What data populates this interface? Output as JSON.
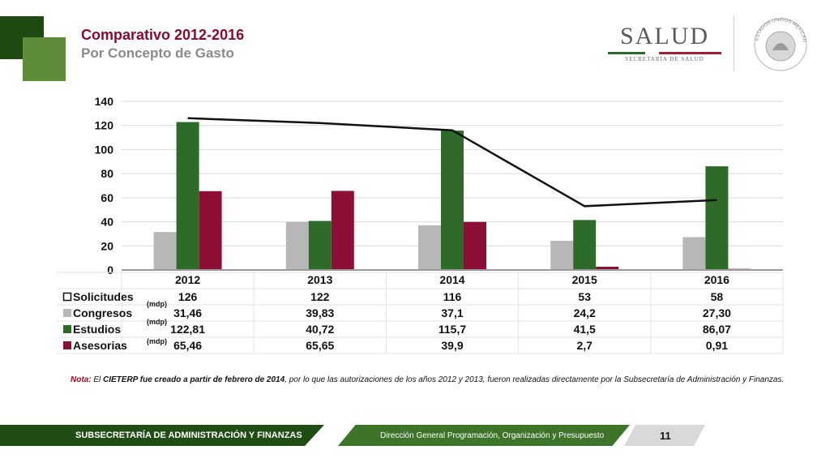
{
  "header": {
    "title": "Comparativo 2012-2016",
    "subtitle": "Por Concepto de Gasto",
    "logo_word": "SALUD",
    "logo_sub": "SECRETARÍA DE SALUD",
    "seal_text": "ESTADOS UNIDOS MEXICANOS"
  },
  "colors": {
    "solicitudes": "#111111",
    "congresos": "#b7b7b7",
    "estudios": "#2f6b28",
    "asesorias": "#8e0f35",
    "title": "#8b0a2e",
    "brand_dark_green": "#1f4d13"
  },
  "chart_data": {
    "type": "bar",
    "categories": [
      "2012",
      "2013",
      "2014",
      "2015",
      "2016"
    ],
    "ylim": [
      0,
      140
    ],
    "yticks": [
      "0",
      "20",
      "40",
      "60",
      "80",
      "100",
      "120",
      "140"
    ],
    "series": [
      {
        "name": "Solicitudes",
        "type": "line",
        "values": [
          126,
          122,
          116,
          53,
          58
        ],
        "labels": [
          "126",
          "122",
          "116",
          "53",
          "58"
        ]
      },
      {
        "name": "Congresos",
        "type": "bar",
        "values": [
          31.46,
          39.83,
          37.1,
          24.2,
          27.3
        ],
        "labels": [
          "31,46",
          "39,83",
          "37,1",
          "24,2",
          "27,30"
        ]
      },
      {
        "name": "Estudios",
        "type": "bar",
        "values": [
          122.81,
          40.72,
          115.7,
          41.5,
          86.07
        ],
        "labels": [
          "122,81",
          "40,72",
          "115,7",
          "41,5",
          "86,07"
        ]
      },
      {
        "name": "Asesorias",
        "type": "bar",
        "values": [
          65.46,
          65.65,
          39.9,
          2.7,
          0.91
        ],
        "labels": [
          "65,46",
          "65,65",
          "39,9",
          "2,7",
          "0,91"
        ]
      }
    ],
    "unit_note": "(mdp)",
    "grid": true
  },
  "note": {
    "label": "Nota:",
    "part1": " El ",
    "bold": "CIETERP fue creado a partir de febrero de 2014",
    "part2": ", por lo que las autorizaciones de los años 2012 y 2013, fueron realizadas directamente por la Subsecretaría de Administración y Finanzas."
  },
  "footer": {
    "left": "SUBSECRETARÍA DE ADMINISTRACIÓN Y FINANZAS",
    "middle": "Dirección General Programación, Organización y Presupuesto",
    "page": "11"
  }
}
